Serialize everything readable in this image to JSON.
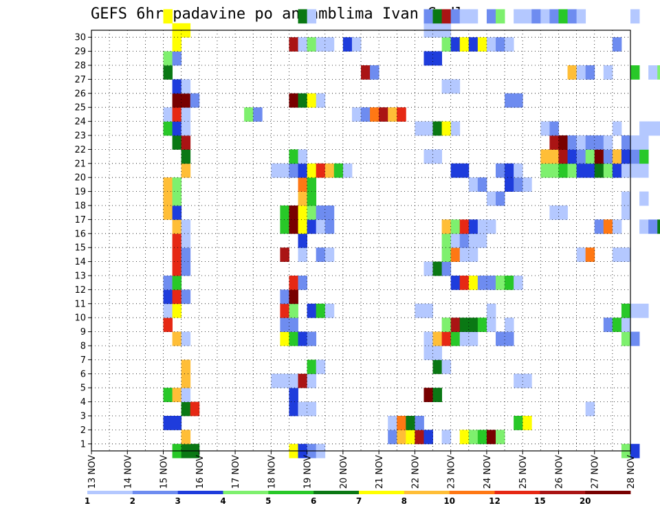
{
  "chart_data": {
    "type": "heatmap",
    "title": "GEFS 6hr padavine po ansamblima Ivan Sedlo",
    "xlabel": "",
    "ylabel": "",
    "x_start": "13 NOV",
    "x_end": "28 NOV",
    "x_step": "6hr",
    "x_tick_labels": [
      "13 NOV",
      "14 NOV",
      "15 NOV",
      "16 NOV",
      "17 NOV",
      "18 NOV",
      "19 NOV",
      "20 NOV",
      "21 NOV",
      "22 NOV",
      "23 NOV",
      "24 NOV",
      "25 NOV",
      "26 NOV",
      "27 NOV",
      "28 NOV"
    ],
    "y_tick_labels": [
      "1",
      "2",
      "3",
      "4",
      "5",
      "6",
      "7",
      "8",
      "9",
      "10",
      "11",
      "12",
      "13",
      "14",
      "15",
      "16",
      "17",
      "18",
      "19",
      "20",
      "21",
      "22",
      "23",
      "24",
      "25",
      "26",
      "27",
      "28",
      "29",
      "30"
    ],
    "ylim": [
      0,
      30
    ],
    "grid": true,
    "colorbar": {
      "boundaries": [
        1,
        2,
        3,
        4,
        5,
        6,
        7,
        8,
        10,
        12,
        15,
        20,
        30
      ],
      "labels": [
        "1",
        "2",
        "3",
        "4",
        "5",
        "6",
        "7",
        "8",
        "10",
        "12",
        "15",
        "20"
      ],
      "colors": [
        "#b4c8ff",
        "#6e8cf0",
        "#1e3cdc",
        "#7ef06e",
        "#28c828",
        "#0a7814",
        "#ffff00",
        "#ffbe37",
        "#ff7814",
        "#e62814",
        "#aa1414",
        "#780000"
      ]
    },
    "cells": [
      [
        2.25,
        0,
        5
      ],
      [
        2.5,
        0,
        6
      ],
      [
        2.75,
        0,
        6
      ],
      [
        5.5,
        0,
        7
      ],
      [
        5.75,
        0,
        3
      ],
      [
        6,
        0,
        2
      ],
      [
        6.25,
        0,
        1
      ],
      [
        14.75,
        0,
        4
      ],
      [
        15,
        0,
        3
      ],
      [
        16.5,
        0,
        1
      ],
      [
        17.25,
        0,
        1
      ],
      [
        2.5,
        1,
        8
      ],
      [
        8.25,
        1,
        2
      ],
      [
        8.5,
        1,
        8
      ],
      [
        8.75,
        1,
        7
      ],
      [
        9,
        1,
        11
      ],
      [
        9.25,
        1,
        3
      ],
      [
        9.75,
        1,
        1
      ],
      [
        10.25,
        1,
        7
      ],
      [
        10.5,
        1,
        4
      ],
      [
        10.75,
        1,
        5
      ],
      [
        11,
        1,
        12
      ],
      [
        11.25,
        1,
        4
      ],
      [
        2,
        2,
        3
      ],
      [
        2.25,
        2,
        3
      ],
      [
        8.25,
        2,
        1
      ],
      [
        8.5,
        2,
        9
      ],
      [
        8.75,
        2,
        6
      ],
      [
        9,
        2,
        2
      ],
      [
        11.75,
        2,
        5
      ],
      [
        12,
        2,
        7
      ],
      [
        2.5,
        3,
        6
      ],
      [
        2.75,
        3,
        10
      ],
      [
        5.5,
        3,
        3
      ],
      [
        5.75,
        3,
        1
      ],
      [
        6,
        3,
        1
      ],
      [
        13.75,
        3,
        1
      ],
      [
        2,
        4,
        5
      ],
      [
        2.25,
        4,
        8
      ],
      [
        2.5,
        4,
        1
      ],
      [
        5.5,
        4,
        3
      ],
      [
        9.25,
        4,
        12
      ],
      [
        9.5,
        4,
        6
      ],
      [
        2.5,
        5,
        8
      ],
      [
        5,
        5,
        1
      ],
      [
        5.25,
        5,
        1
      ],
      [
        5.5,
        5,
        1
      ],
      [
        5.75,
        5,
        11
      ],
      [
        6,
        5,
        1
      ],
      [
        11.75,
        5,
        1
      ],
      [
        12,
        5,
        1
      ],
      [
        2.5,
        6,
        8
      ],
      [
        6,
        6,
        5
      ],
      [
        6.25,
        6,
        1
      ],
      [
        9.5,
        6,
        6
      ],
      [
        9.75,
        6,
        1
      ],
      [
        9.25,
        7,
        1
      ],
      [
        9.5,
        7,
        1
      ],
      [
        2.25,
        8,
        8
      ],
      [
        2.5,
        8,
        1
      ],
      [
        5.25,
        8,
        7
      ],
      [
        5.5,
        8,
        5
      ],
      [
        5.75,
        8,
        3
      ],
      [
        6,
        8,
        2
      ],
      [
        9.25,
        8,
        1
      ],
      [
        9.5,
        8,
        8
      ],
      [
        9.75,
        8,
        10
      ],
      [
        10,
        8,
        5
      ],
      [
        10.25,
        8,
        1
      ],
      [
        10.5,
        8,
        1
      ],
      [
        11.25,
        8,
        2
      ],
      [
        11.5,
        8,
        2
      ],
      [
        14.75,
        8,
        4
      ],
      [
        15,
        8,
        2
      ],
      [
        2,
        9,
        10
      ],
      [
        5.25,
        9,
        2
      ],
      [
        5.5,
        9,
        2
      ],
      [
        9.75,
        9,
        4
      ],
      [
        10,
        9,
        11
      ],
      [
        10.25,
        9,
        6
      ],
      [
        10.5,
        9,
        6
      ],
      [
        10.75,
        9,
        5
      ],
      [
        11,
        9,
        1
      ],
      [
        11.5,
        9,
        1
      ],
      [
        14.25,
        9,
        2
      ],
      [
        14.5,
        9,
        5
      ],
      [
        14.75,
        9,
        1
      ],
      [
        2,
        10,
        1
      ],
      [
        2.25,
        10,
        7
      ],
      [
        5.25,
        10,
        10
      ],
      [
        5.5,
        10,
        4
      ],
      [
        6,
        10,
        3
      ],
      [
        6.25,
        10,
        5
      ],
      [
        6.5,
        10,
        1
      ],
      [
        9,
        10,
        1
      ],
      [
        9.25,
        10,
        1
      ],
      [
        11,
        10,
        1
      ],
      [
        14.75,
        10,
        5
      ],
      [
        15,
        10,
        1
      ],
      [
        15.25,
        10,
        1
      ],
      [
        2,
        11,
        3
      ],
      [
        2.25,
        11,
        10
      ],
      [
        2.5,
        11,
        2
      ],
      [
        5.25,
        11,
        2
      ],
      [
        5.5,
        11,
        12
      ],
      [
        2,
        12,
        2
      ],
      [
        2.25,
        12,
        5
      ],
      [
        5.5,
        12,
        10
      ],
      [
        5.75,
        12,
        2
      ],
      [
        10,
        12,
        3
      ],
      [
        10.25,
        12,
        10
      ],
      [
        10.5,
        12,
        7
      ],
      [
        10.75,
        12,
        2
      ],
      [
        11,
        12,
        2
      ],
      [
        11.25,
        12,
        4
      ],
      [
        11.5,
        12,
        5
      ],
      [
        11.75,
        12,
        1
      ],
      [
        2.25,
        13,
        10
      ],
      [
        2.5,
        13,
        2
      ],
      [
        9.25,
        13,
        1
      ],
      [
        9.5,
        13,
        6
      ],
      [
        9.75,
        13,
        2
      ],
      [
        2.25,
        14,
        10
      ],
      [
        2.5,
        14,
        2
      ],
      [
        5.25,
        14,
        11
      ],
      [
        5.75,
        14,
        1
      ],
      [
        6.25,
        14,
        2
      ],
      [
        6.5,
        14,
        1
      ],
      [
        9.75,
        14,
        4
      ],
      [
        10,
        14,
        9
      ],
      [
        10.25,
        14,
        1
      ],
      [
        10.5,
        14,
        1
      ],
      [
        13.5,
        14,
        1
      ],
      [
        13.75,
        14,
        9
      ],
      [
        14.5,
        14,
        1
      ],
      [
        14.75,
        14,
        1
      ],
      [
        16,
        14,
        4
      ],
      [
        2.25,
        15,
        10
      ],
      [
        2.5,
        15,
        1
      ],
      [
        5.75,
        15,
        3
      ],
      [
        9.75,
        15,
        4
      ],
      [
        10,
        15,
        1
      ],
      [
        10.25,
        15,
        2
      ],
      [
        10.5,
        15,
        1
      ],
      [
        10.75,
        15,
        1
      ],
      [
        2.25,
        16,
        8
      ],
      [
        2.5,
        16,
        1
      ],
      [
        5.25,
        16,
        5
      ],
      [
        5.5,
        16,
        12
      ],
      [
        5.75,
        16,
        7
      ],
      [
        6,
        16,
        3
      ],
      [
        6.25,
        16,
        1
      ],
      [
        6.5,
        16,
        2
      ],
      [
        9.75,
        16,
        8
      ],
      [
        10,
        16,
        4
      ],
      [
        10.25,
        16,
        10
      ],
      [
        10.5,
        16,
        3
      ],
      [
        10.75,
        16,
        1
      ],
      [
        11,
        16,
        1
      ],
      [
        14,
        16,
        2
      ],
      [
        14.25,
        16,
        9
      ],
      [
        14.5,
        16,
        1
      ],
      [
        15.25,
        16,
        1
      ],
      [
        15.5,
        16,
        2
      ],
      [
        15.75,
        16,
        6
      ],
      [
        2,
        17,
        8
      ],
      [
        2.25,
        17,
        3
      ],
      [
        5.25,
        17,
        5
      ],
      [
        5.5,
        17,
        12
      ],
      [
        5.75,
        17,
        7
      ],
      [
        6,
        17,
        4
      ],
      [
        6.25,
        17,
        2
      ],
      [
        6.5,
        17,
        2
      ],
      [
        12.75,
        17,
        1
      ],
      [
        13,
        17,
        1
      ],
      [
        14.75,
        17,
        1
      ],
      [
        2,
        18,
        8
      ],
      [
        2.25,
        18,
        4
      ],
      [
        5.75,
        18,
        8
      ],
      [
        6,
        18,
        5
      ],
      [
        11,
        18,
        1
      ],
      [
        11.25,
        18,
        2
      ],
      [
        14.75,
        18,
        1
      ],
      [
        15.25,
        18,
        1
      ],
      [
        2,
        19,
        8
      ],
      [
        2.25,
        19,
        4
      ],
      [
        5.75,
        19,
        9
      ],
      [
        6,
        19,
        5
      ],
      [
        10.5,
        19,
        1
      ],
      [
        10.75,
        19,
        2
      ],
      [
        11.5,
        19,
        3
      ],
      [
        11.75,
        19,
        2
      ],
      [
        12,
        19,
        1
      ],
      [
        2.5,
        20,
        8
      ],
      [
        5,
        20,
        1
      ],
      [
        5.25,
        20,
        1
      ],
      [
        5.5,
        20,
        2
      ],
      [
        5.75,
        20,
        3
      ],
      [
        6,
        20,
        7
      ],
      [
        6.25,
        20,
        10
      ],
      [
        6.5,
        20,
        8
      ],
      [
        6.75,
        20,
        5
      ],
      [
        7,
        20,
        1
      ],
      [
        10,
        20,
        3
      ],
      [
        10.25,
        20,
        3
      ],
      [
        11.25,
        20,
        2
      ],
      [
        11.5,
        20,
        3
      ],
      [
        11.75,
        20,
        1
      ],
      [
        12.5,
        20,
        4
      ],
      [
        12.75,
        20,
        4
      ],
      [
        13,
        20,
        5
      ],
      [
        13.25,
        20,
        4
      ],
      [
        13.5,
        20,
        3
      ],
      [
        13.75,
        20,
        3
      ],
      [
        14,
        20,
        6
      ],
      [
        14.25,
        20,
        4
      ],
      [
        14.5,
        20,
        3
      ],
      [
        14.75,
        20,
        1
      ],
      [
        15,
        20,
        1
      ],
      [
        15.25,
        20,
        1
      ],
      [
        2.5,
        21,
        6
      ],
      [
        5.5,
        21,
        5
      ],
      [
        5.75,
        21,
        1
      ],
      [
        9.25,
        21,
        1
      ],
      [
        9.5,
        21,
        1
      ],
      [
        12.5,
        21,
        8
      ],
      [
        12.75,
        21,
        8
      ],
      [
        13,
        21,
        11
      ],
      [
        13.25,
        21,
        3
      ],
      [
        13.5,
        21,
        2
      ],
      [
        13.75,
        21,
        4
      ],
      [
        14,
        21,
        12
      ],
      [
        14.25,
        21,
        2
      ],
      [
        14.5,
        21,
        8
      ],
      [
        14.75,
        21,
        3
      ],
      [
        15,
        21,
        2
      ],
      [
        15.25,
        21,
        5
      ],
      [
        2.25,
        22,
        6
      ],
      [
        2.5,
        22,
        11
      ],
      [
        12.75,
        22,
        11
      ],
      [
        13,
        22,
        12
      ],
      [
        13.25,
        22,
        2
      ],
      [
        13.5,
        22,
        1
      ],
      [
        13.75,
        22,
        2
      ],
      [
        14,
        22,
        2
      ],
      [
        14.25,
        22,
        1
      ],
      [
        14.75,
        22,
        2
      ],
      [
        15,
        22,
        1
      ],
      [
        15.25,
        22,
        1
      ],
      [
        2,
        23,
        5
      ],
      [
        2.25,
        23,
        3
      ],
      [
        2.5,
        23,
        1
      ],
      [
        9,
        23,
        1
      ],
      [
        9.25,
        23,
        1
      ],
      [
        9.5,
        23,
        6
      ],
      [
        9.75,
        23,
        7
      ],
      [
        10,
        23,
        1
      ],
      [
        12.5,
        23,
        1
      ],
      [
        12.75,
        23,
        2
      ],
      [
        14.5,
        23,
        1
      ],
      [
        15.25,
        23,
        1
      ],
      [
        15.5,
        23,
        1
      ],
      [
        15.75,
        23,
        1
      ],
      [
        2,
        24,
        1
      ],
      [
        2.25,
        24,
        10
      ],
      [
        2.5,
        24,
        1
      ],
      [
        4.25,
        24,
        4
      ],
      [
        4.5,
        24,
        2
      ],
      [
        7.25,
        24,
        1
      ],
      [
        7.5,
        24,
        2
      ],
      [
        7.75,
        24,
        9
      ],
      [
        8,
        24,
        11
      ],
      [
        8.25,
        24,
        8
      ],
      [
        8.5,
        24,
        10
      ],
      [
        2.25,
        25,
        12
      ],
      [
        2.5,
        25,
        12
      ],
      [
        2.75,
        25,
        2
      ],
      [
        5.5,
        25,
        12
      ],
      [
        5.75,
        25,
        6
      ],
      [
        6,
        25,
        7
      ],
      [
        6.25,
        25,
        1
      ],
      [
        11.5,
        25,
        2
      ],
      [
        11.75,
        25,
        2
      ],
      [
        2.25,
        26,
        3
      ],
      [
        2.5,
        26,
        1
      ],
      [
        9.75,
        26,
        1
      ],
      [
        10,
        26,
        1
      ],
      [
        2,
        27,
        6
      ],
      [
        7.5,
        27,
        11
      ],
      [
        7.75,
        27,
        2
      ],
      [
        13.25,
        27,
        8
      ],
      [
        13.5,
        27,
        1
      ],
      [
        13.75,
        27,
        2
      ],
      [
        14.25,
        27,
        1
      ],
      [
        15,
        27,
        5
      ],
      [
        15.5,
        27,
        1
      ],
      [
        15.75,
        27,
        4
      ],
      [
        2,
        28,
        4
      ],
      [
        2.25,
        28,
        2
      ],
      [
        9.25,
        28,
        3
      ],
      [
        9.5,
        28,
        3
      ],
      [
        2.25,
        29,
        7
      ],
      [
        5.5,
        29,
        11
      ],
      [
        5.75,
        29,
        1
      ],
      [
        6,
        29,
        4
      ],
      [
        6.25,
        29,
        1
      ],
      [
        6.5,
        29,
        1
      ],
      [
        7,
        29,
        3
      ],
      [
        7.25,
        29,
        1
      ],
      [
        9.75,
        29,
        4
      ],
      [
        10,
        29,
        3
      ],
      [
        10.25,
        29,
        7
      ],
      [
        10.5,
        29,
        3
      ],
      [
        10.75,
        29,
        7
      ],
      [
        11,
        29,
        1
      ],
      [
        11.25,
        29,
        2
      ],
      [
        11.5,
        29,
        1
      ],
      [
        14.5,
        29,
        2
      ],
      [
        2.25,
        30,
        7
      ],
      [
        2.5,
        30,
        7
      ],
      [
        9.25,
        30,
        1
      ],
      [
        9.5,
        30,
        1
      ],
      [
        9.75,
        30,
        1
      ],
      [
        2,
        31,
        7
      ],
      [
        5.75,
        31,
        6
      ],
      [
        6,
        31,
        1
      ],
      [
        9.25,
        31,
        2
      ],
      [
        9.5,
        31,
        6
      ],
      [
        9.75,
        31,
        11
      ],
      [
        10,
        31,
        2
      ],
      [
        10.25,
        31,
        1
      ],
      [
        10.5,
        31,
        1
      ],
      [
        11,
        31,
        2
      ],
      [
        11.25,
        31,
        4
      ],
      [
        11.75,
        31,
        1
      ],
      [
        12,
        31,
        1
      ],
      [
        12.25,
        31,
        2
      ],
      [
        12.5,
        31,
        1
      ],
      [
        12.75,
        31,
        2
      ],
      [
        13,
        31,
        5
      ],
      [
        13.25,
        31,
        2
      ],
      [
        13.5,
        31,
        1
      ],
      [
        15,
        31,
        1
      ]
    ]
  }
}
